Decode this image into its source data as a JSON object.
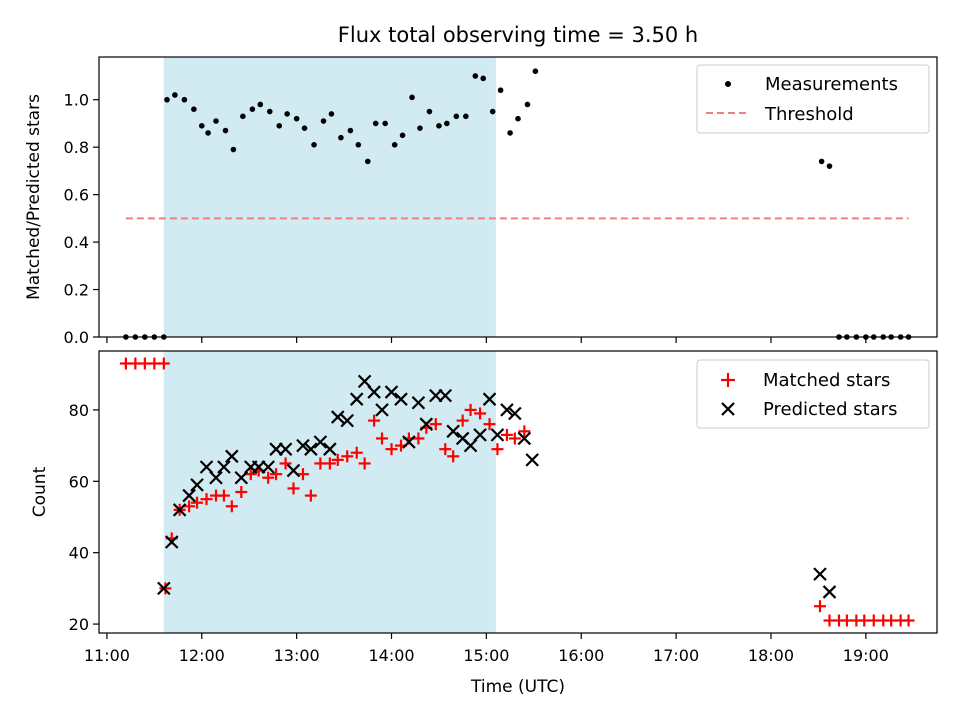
{
  "chart_data": [
    {
      "type": "scatter",
      "title": "Flux total observing time = 3.50 h",
      "xlabel": "",
      "ylabel": "Matched/Predicted stars",
      "xlim": [
        "10:55",
        "19:45"
      ],
      "ylim": [
        0,
        1.18
      ],
      "yticks": [
        "0.0",
        "0.2",
        "0.4",
        "0.6",
        "0.8",
        "1.0"
      ],
      "shaded_region": {
        "from": "11:36",
        "to": "15:06",
        "color": "#add8e6"
      },
      "legend": {
        "placement": "top-right",
        "entries": [
          "Measurements",
          "Threshold"
        ]
      },
      "series": [
        {
          "name": "Measurements",
          "color": "#000000",
          "marker": "dot",
          "points": [
            [
              "11:12",
              0.0
            ],
            [
              "11:18",
              0.0
            ],
            [
              "11:24",
              0.0
            ],
            [
              "11:30",
              0.0
            ],
            [
              "11:36",
              0.0
            ],
            [
              "11:38",
              1.0
            ],
            [
              "11:43",
              1.02
            ],
            [
              "11:49",
              1.0
            ],
            [
              "11:55",
              0.96
            ],
            [
              "12:00",
              0.89
            ],
            [
              "12:04",
              0.86
            ],
            [
              "12:09",
              0.91
            ],
            [
              "12:15",
              0.87
            ],
            [
              "12:20",
              0.79
            ],
            [
              "12:26",
              0.93
            ],
            [
              "12:32",
              0.96
            ],
            [
              "12:37",
              0.98
            ],
            [
              "12:43",
              0.95
            ],
            [
              "12:49",
              0.89
            ],
            [
              "12:54",
              0.94
            ],
            [
              "13:00",
              0.92
            ],
            [
              "13:05",
              0.88
            ],
            [
              "13:11",
              0.81
            ],
            [
              "13:17",
              0.91
            ],
            [
              "13:22",
              0.94
            ],
            [
              "13:28",
              0.84
            ],
            [
              "13:34",
              0.87
            ],
            [
              "13:39",
              0.81
            ],
            [
              "13:45",
              0.74
            ],
            [
              "13:50",
              0.9
            ],
            [
              "13:56",
              0.9
            ],
            [
              "14:02",
              0.81
            ],
            [
              "14:07",
              0.85
            ],
            [
              "14:13",
              1.01
            ],
            [
              "14:18",
              0.88
            ],
            [
              "14:24",
              0.95
            ],
            [
              "14:30",
              0.89
            ],
            [
              "14:35",
              0.9
            ],
            [
              "14:41",
              0.93
            ],
            [
              "14:47",
              0.93
            ],
            [
              "14:53",
              1.1
            ],
            [
              "14:58",
              1.09
            ],
            [
              "15:04",
              0.95
            ],
            [
              "15:09",
              1.04
            ],
            [
              "15:15",
              0.86
            ],
            [
              "15:20",
              0.92
            ],
            [
              "15:26",
              0.98
            ],
            [
              "15:31",
              1.12
            ],
            [
              "18:32",
              0.74
            ],
            [
              "18:37",
              0.72
            ],
            [
              "18:43",
              0.0
            ],
            [
              "18:48",
              0.0
            ],
            [
              "18:54",
              0.0
            ],
            [
              "19:00",
              0.0
            ],
            [
              "19:05",
              0.0
            ],
            [
              "19:11",
              0.0
            ],
            [
              "19:16",
              0.0
            ],
            [
              "19:22",
              0.0
            ],
            [
              "19:27",
              0.0
            ]
          ]
        },
        {
          "name": "Threshold",
          "color": "#f08080",
          "style": "dashed",
          "line": [
            [
              "11:12",
              0.5
            ],
            [
              "19:27",
              0.5
            ]
          ]
        }
      ]
    },
    {
      "type": "scatter",
      "title": "",
      "xlabel": "Time (UTC)",
      "ylabel": "Count",
      "xlim": [
        "10:55",
        "19:45"
      ],
      "ylim": [
        17.5,
        96.5
      ],
      "yticks": [
        "20",
        "40",
        "60",
        "80"
      ],
      "xticks": [
        "11:00",
        "12:00",
        "13:00",
        "14:00",
        "15:00",
        "16:00",
        "17:00",
        "18:00",
        "19:00"
      ],
      "shaded_region": {
        "from": "11:36",
        "to": "15:06",
        "color": "#add8e6"
      },
      "legend": {
        "placement": "top-right",
        "entries": [
          "Matched stars",
          "Predicted stars"
        ]
      },
      "series": [
        {
          "name": "Matched stars",
          "color": "#ff0000",
          "marker": "plus",
          "points": [
            [
              "11:12",
              93
            ],
            [
              "11:18",
              93
            ],
            [
              "11:24",
              93
            ],
            [
              "11:30",
              93
            ],
            [
              "11:36",
              93
            ],
            [
              "11:37",
              30
            ],
            [
              "11:41",
              44
            ],
            [
              "11:46",
              52
            ],
            [
              "11:52",
              53
            ],
            [
              "11:57",
              54
            ],
            [
              "12:03",
              55
            ],
            [
              "12:09",
              56
            ],
            [
              "12:14",
              56
            ],
            [
              "12:19",
              53
            ],
            [
              "12:25",
              57
            ],
            [
              "12:31",
              62
            ],
            [
              "12:36",
              63
            ],
            [
              "12:42",
              61
            ],
            [
              "12:47",
              62
            ],
            [
              "12:53",
              65
            ],
            [
              "12:58",
              58
            ],
            [
              "13:04",
              62
            ],
            [
              "13:09",
              56
            ],
            [
              "13:15",
              65
            ],
            [
              "13:21",
              65
            ],
            [
              "13:26",
              66
            ],
            [
              "13:32",
              67
            ],
            [
              "13:38",
              68
            ],
            [
              "13:43",
              65
            ],
            [
              "13:49",
              77
            ],
            [
              "13:54",
              72
            ],
            [
              "14:00",
              69
            ],
            [
              "14:06",
              70
            ],
            [
              "14:11",
              72
            ],
            [
              "14:17",
              72
            ],
            [
              "14:22",
              75
            ],
            [
              "14:28",
              76
            ],
            [
              "14:34",
              69
            ],
            [
              "14:39",
              67
            ],
            [
              "14:45",
              77
            ],
            [
              "14:50",
              80
            ],
            [
              "14:56",
              79
            ],
            [
              "15:02",
              76
            ],
            [
              "15:07",
              69
            ],
            [
              "15:13",
              73
            ],
            [
              "15:18",
              72
            ],
            [
              "15:24",
              74
            ],
            [
              "18:31",
              25
            ],
            [
              "18:37",
              21
            ],
            [
              "18:43",
              21
            ],
            [
              "18:48",
              21
            ],
            [
              "18:54",
              21
            ],
            [
              "18:59",
              21
            ],
            [
              "19:05",
              21
            ],
            [
              "19:11",
              21
            ],
            [
              "19:16",
              21
            ],
            [
              "19:22",
              21
            ],
            [
              "19:27",
              21
            ]
          ]
        },
        {
          "name": "Predicted stars",
          "color": "#000000",
          "marker": "x",
          "points": [
            [
              "11:36",
              30
            ],
            [
              "11:41",
              43
            ],
            [
              "11:46",
              52
            ],
            [
              "11:52",
              56
            ],
            [
              "11:57",
              59
            ],
            [
              "12:03",
              64
            ],
            [
              "12:09",
              61
            ],
            [
              "12:14",
              64
            ],
            [
              "12:19",
              67
            ],
            [
              "12:25",
              61
            ],
            [
              "12:31",
              64
            ],
            [
              "12:36",
              64
            ],
            [
              "12:42",
              64
            ],
            [
              "12:47",
              69
            ],
            [
              "12:53",
              69
            ],
            [
              "12:58",
              63
            ],
            [
              "13:04",
              70
            ],
            [
              "13:09",
              69
            ],
            [
              "13:15",
              71
            ],
            [
              "13:21",
              69
            ],
            [
              "13:26",
              78
            ],
            [
              "13:32",
              77
            ],
            [
              "13:38",
              83
            ],
            [
              "13:43",
              88
            ],
            [
              "13:49",
              85
            ],
            [
              "13:54",
              80
            ],
            [
              "14:00",
              85
            ],
            [
              "14:06",
              83
            ],
            [
              "14:11",
              71
            ],
            [
              "14:17",
              82
            ],
            [
              "14:22",
              76
            ],
            [
              "14:28",
              84
            ],
            [
              "14:34",
              84
            ],
            [
              "14:39",
              74
            ],
            [
              "14:45",
              72
            ],
            [
              "14:50",
              70
            ],
            [
              "14:56",
              73
            ],
            [
              "15:02",
              83
            ],
            [
              "15:07",
              73
            ],
            [
              "15:13",
              80
            ],
            [
              "15:18",
              79
            ],
            [
              "15:24",
              72
            ],
            [
              "15:29",
              66
            ],
            [
              "18:31",
              34
            ],
            [
              "18:37",
              29
            ]
          ]
        }
      ]
    }
  ]
}
